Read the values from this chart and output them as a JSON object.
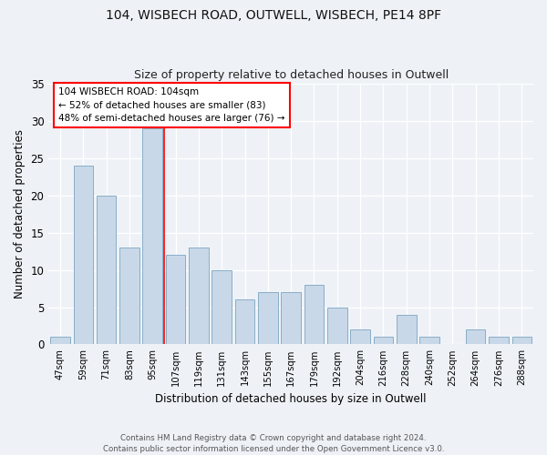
{
  "title1": "104, WISBECH ROAD, OUTWELL, WISBECH, PE14 8PF",
  "title2": "Size of property relative to detached houses in Outwell",
  "xlabel": "Distribution of detached houses by size in Outwell",
  "ylabel": "Number of detached properties",
  "categories": [
    "47sqm",
    "59sqm",
    "71sqm",
    "83sqm",
    "95sqm",
    "107sqm",
    "119sqm",
    "131sqm",
    "143sqm",
    "155sqm",
    "167sqm",
    "179sqm",
    "192sqm",
    "204sqm",
    "216sqm",
    "228sqm",
    "240sqm",
    "252sqm",
    "264sqm",
    "276sqm",
    "288sqm"
  ],
  "values": [
    1,
    24,
    20,
    13,
    29,
    12,
    13,
    10,
    6,
    7,
    7,
    8,
    5,
    2,
    1,
    4,
    1,
    0,
    2,
    1,
    1
  ],
  "bar_color": "#c8d8e8",
  "bar_edgecolor": "#8aaec8",
  "annotation_text1": "104 WISBECH ROAD: 104sqm",
  "annotation_text2": "← 52% of detached houses are smaller (83)",
  "annotation_text3": "48% of semi-detached houses are larger (76) →",
  "annotation_box_color": "white",
  "annotation_box_edgecolor": "red",
  "vline_color": "red",
  "ylim": [
    0,
    35
  ],
  "yticks": [
    0,
    5,
    10,
    15,
    20,
    25,
    30,
    35
  ],
  "footer1": "Contains HM Land Registry data © Crown copyright and database right 2024.",
  "footer2": "Contains public sector information licensed under the Open Government Licence v3.0.",
  "bg_color": "#eef2f7"
}
